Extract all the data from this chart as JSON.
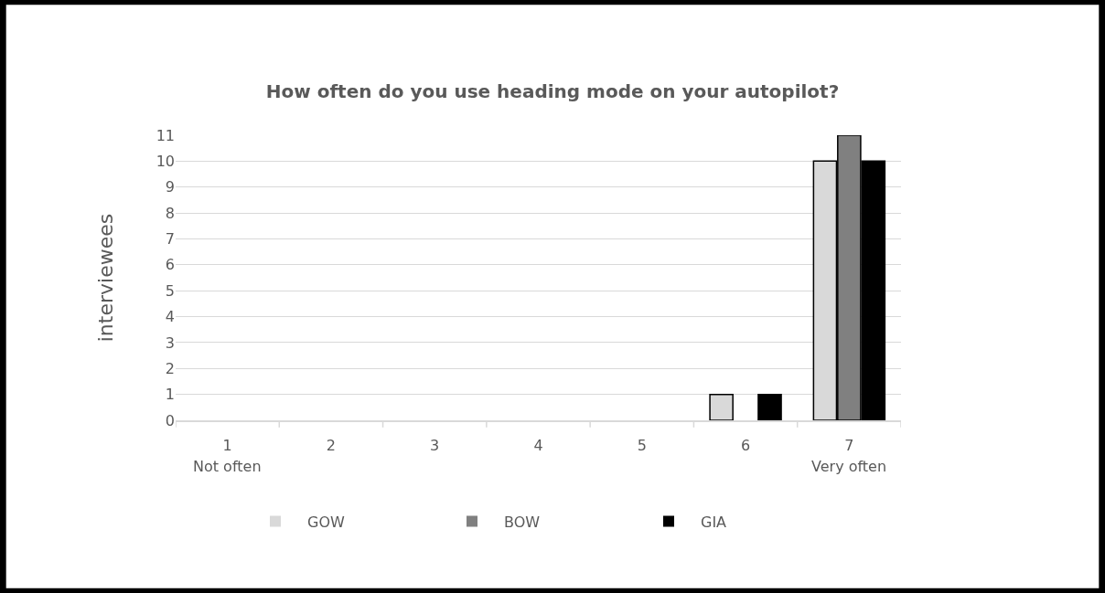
{
  "chart_data": {
    "type": "bar",
    "title": "How often do you use heading mode on your autopilot?",
    "ylabel": "interviewees",
    "categories": [
      "1",
      "2",
      "3",
      "4",
      "5",
      "6",
      "7"
    ],
    "series": [
      {
        "name": "GOW",
        "color": "#d9d9d9",
        "values": [
          0,
          0,
          0,
          0,
          0,
          1,
          10
        ]
      },
      {
        "name": "BOW",
        "color": "#808080",
        "values": [
          0,
          0,
          0,
          0,
          0,
          0,
          11
        ]
      },
      {
        "name": "GIA",
        "color": "#000000",
        "values": [
          0,
          0,
          0,
          0,
          0,
          1,
          10
        ]
      }
    ],
    "annotations": [
      "Not often",
      "Very often"
    ],
    "ylim": [
      0,
      11
    ],
    "yticks": [
      0,
      1,
      2,
      3,
      4,
      5,
      6,
      7,
      8,
      9,
      10,
      11
    ],
    "grid": "y",
    "legend": "bottom"
  }
}
